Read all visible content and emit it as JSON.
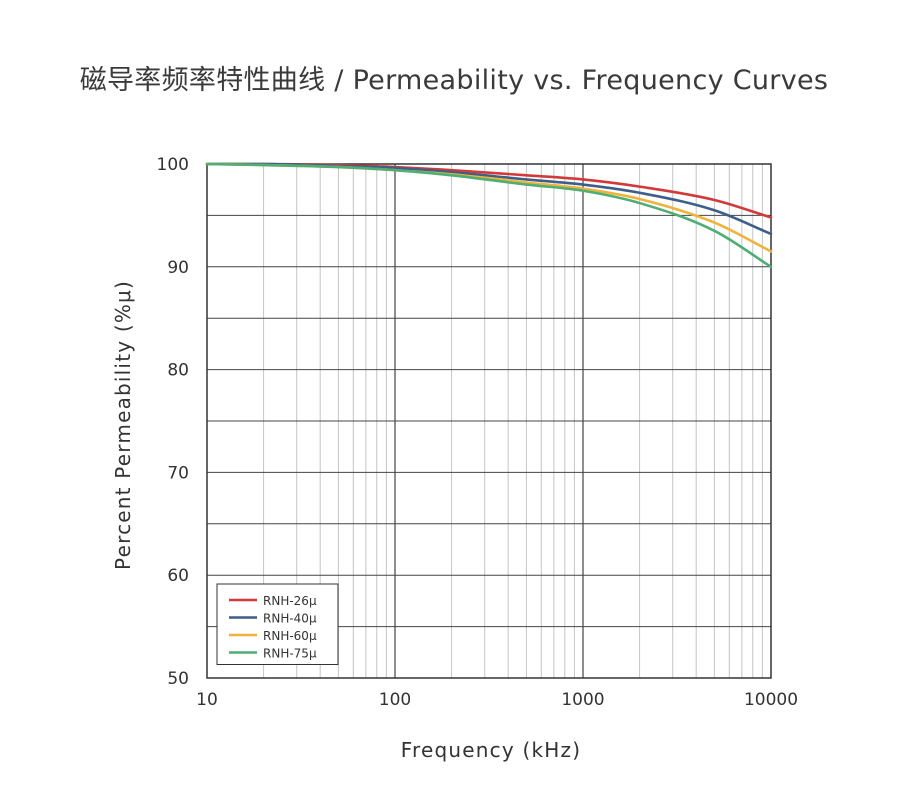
{
  "chart_data": {
    "type": "line",
    "title": "磁导率频率特性曲线 / Permeability vs. Frequency Curves",
    "xlabel": "Frequency (kHz)",
    "ylabel": "Percent Permeability (%μ)",
    "xscale": "log",
    "xlim": [
      10,
      10000
    ],
    "ylim": [
      50,
      100
    ],
    "xticks": [
      "10",
      "100",
      "1000",
      "10000"
    ],
    "yticks": [
      "50",
      "60",
      "70",
      "80",
      "90",
      "100"
    ],
    "grid": true,
    "legend_position": "bottom-left",
    "x": [
      10,
      20,
      50,
      100,
      200,
      500,
      1000,
      2000,
      5000,
      10000
    ],
    "series": [
      {
        "name": "RNH-26μ",
        "color": "#d23a3a",
        "values": [
          100,
          100,
          99.9,
          99.7,
          99.4,
          98.9,
          98.5,
          97.8,
          96.5,
          94.8
        ]
      },
      {
        "name": "RNH-40μ",
        "color": "#3d5f8a",
        "values": [
          100,
          100,
          99.8,
          99.6,
          99.2,
          98.5,
          98.0,
          97.2,
          95.5,
          93.2
        ]
      },
      {
        "name": "RNH-60μ",
        "color": "#f0b23a",
        "values": [
          100,
          99.9,
          99.7,
          99.4,
          99.0,
          98.2,
          97.6,
          96.6,
          94.3,
          91.5
        ]
      },
      {
        "name": "RNH-75μ",
        "color": "#4eae74",
        "values": [
          100,
          99.9,
          99.7,
          99.4,
          98.9,
          98.0,
          97.4,
          96.2,
          93.5,
          90.0
        ]
      }
    ]
  }
}
